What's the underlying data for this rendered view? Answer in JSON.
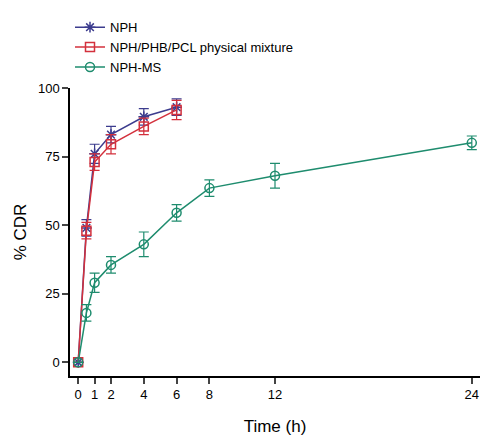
{
  "chart_data": {
    "type": "line",
    "x_label": "Time (h)",
    "y_label": "% CDR",
    "xlim": [
      -0.5,
      24.5
    ],
    "xticks": [
      0,
      1,
      2,
      4,
      6,
      8,
      12,
      24
    ],
    "ylim": [
      -5,
      100
    ],
    "yticks": [
      0,
      25,
      50,
      75,
      100
    ],
    "grid": false,
    "legend": "top left",
    "series": [
      {
        "name": "NPH",
        "color": "#3c3c8e",
        "marker": "asterisk",
        "line_style": "solid",
        "x": [
          0,
          0.5,
          1,
          2,
          4,
          6
        ],
        "values": [
          0,
          49,
          76,
          83,
          89.5,
          93
        ],
        "errors": [
          0,
          3,
          3.5,
          3,
          3,
          3
        ]
      },
      {
        "name": "NPH/PHB/PCL physical mixture",
        "color": "#d3303c",
        "marker": "square",
        "line_style": "solid",
        "x": [
          0,
          0.5,
          1,
          2,
          4,
          6
        ],
        "values": [
          0,
          48,
          73,
          79.5,
          86,
          92
        ],
        "errors": [
          0,
          3,
          3,
          3.5,
          3,
          3.5
        ]
      },
      {
        "name": "NPH-MS",
        "color": "#1e8c6e",
        "marker": "circle",
        "line_style": "solid",
        "x": [
          0,
          0.5,
          1,
          2,
          4,
          6,
          8,
          12,
          24
        ],
        "values": [
          0,
          18,
          29,
          35.5,
          43,
          54.5,
          63.5,
          68,
          80
        ],
        "errors": [
          0,
          3,
          3.5,
          3,
          4.5,
          3,
          3,
          4.5,
          2.5
        ]
      }
    ]
  }
}
